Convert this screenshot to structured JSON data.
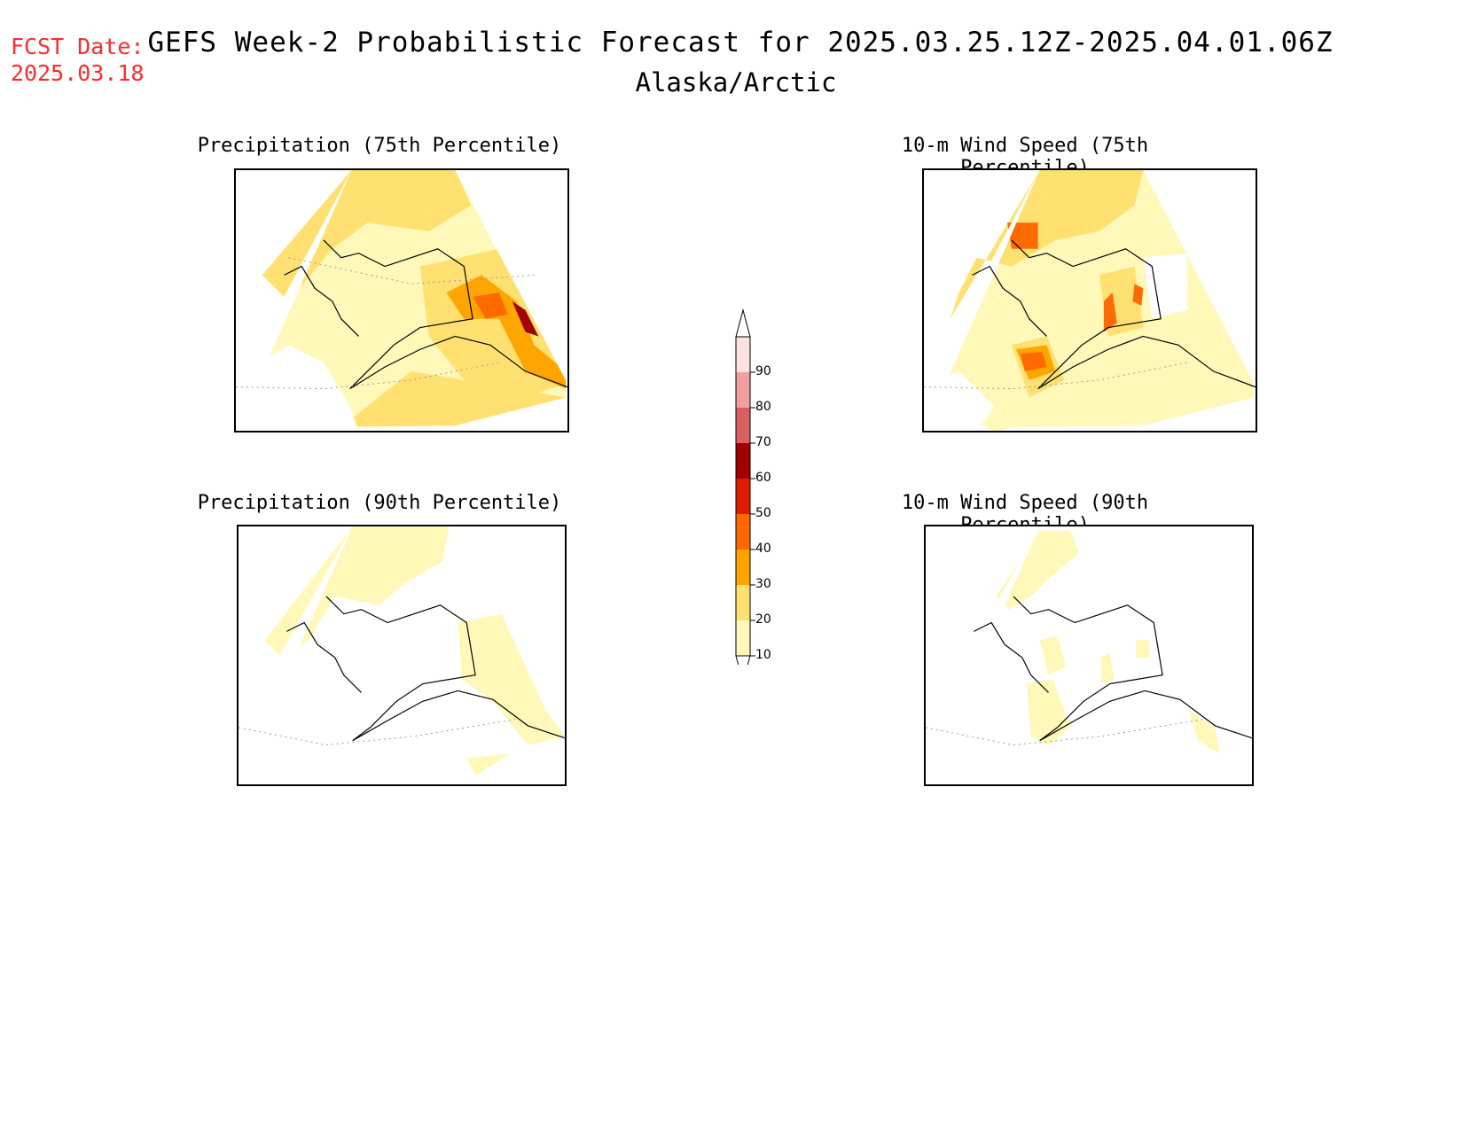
{
  "header": {
    "fcst_label": "FCST Date:",
    "fcst_date": "2025.03.18",
    "title": "GEFS Week-2 Probabilistic Forecast for 2025.03.25.12Z-2025.04.01.06Z",
    "subtitle": "Alaska/Arctic"
  },
  "panels": [
    {
      "id": "p75",
      "title": "Precipitation (75th Percentile)"
    },
    {
      "id": "w75",
      "title": "10-m Wind Speed (75th Percentile)"
    },
    {
      "id": "p90",
      "title": "Precipitation (90th Percentile)"
    },
    {
      "id": "w90",
      "title": "10-m Wind Speed (90th Percentile)"
    }
  ],
  "colorbar": {
    "levels": [
      "10",
      "20",
      "30",
      "40",
      "50",
      "60",
      "70",
      "80",
      "90"
    ],
    "colors": [
      "#fff8b8",
      "#ffe070",
      "#ffa500",
      "#ff6a00",
      "#e01b00",
      "#a00000",
      "#d86060",
      "#f0a0a0",
      "#fde0e0"
    ]
  }
}
